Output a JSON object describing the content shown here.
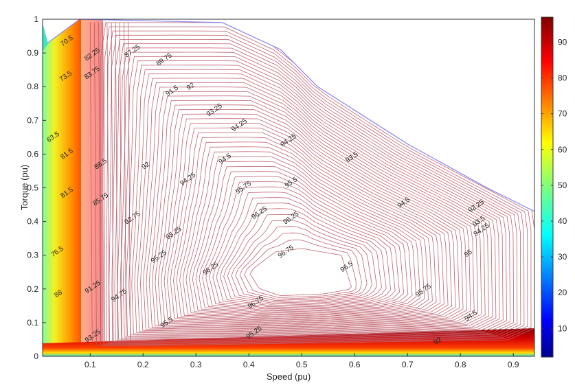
{
  "chart_data": {
    "type": "contour",
    "title": "",
    "xlabel": "Speed (pu)",
    "ylabel": "Torque (pu)",
    "xlim": [
      0.01,
      0.94
    ],
    "ylim": [
      0,
      1
    ],
    "x_ticks": [
      "0.1",
      "0.2",
      "0.3",
      "0.4",
      "0.5",
      "0.6",
      "0.7",
      "0.8",
      "0.9"
    ],
    "x_tick_values": [
      0.1,
      0.2,
      0.3,
      0.4,
      0.5,
      0.6,
      0.7,
      0.8,
      0.9
    ],
    "y_ticks": [
      "0",
      "0.1",
      "0.2",
      "0.3",
      "0.4",
      "0.5",
      "0.6",
      "0.7",
      "0.8",
      "0.9",
      "1"
    ],
    "y_tick_values": [
      0,
      0.1,
      0.2,
      0.3,
      0.4,
      0.5,
      0.6,
      0.7,
      0.8,
      0.9,
      1
    ],
    "colorbar": {
      "range": [
        2,
        97
      ],
      "ticks": [
        "10",
        "20",
        "30",
        "40",
        "50",
        "60",
        "70",
        "80",
        "90"
      ],
      "tick_values": [
        10,
        20,
        30,
        40,
        50,
        60,
        70,
        80,
        90
      ],
      "colormap": "jet"
    },
    "efficiency_peak": {
      "x": 0.52,
      "y": 0.26,
      "value": 96.75
    },
    "torque_limit_curve": [
      {
        "x": 0.02,
        "y": 0.93
      },
      {
        "x": 0.08,
        "y": 1.0
      },
      {
        "x": 0.35,
        "y": 0.99
      },
      {
        "x": 0.46,
        "y": 0.91
      },
      {
        "x": 0.53,
        "y": 0.8
      },
      {
        "x": 0.7,
        "y": 0.63
      },
      {
        "x": 0.85,
        "y": 0.5
      },
      {
        "x": 0.94,
        "y": 0.43
      }
    ],
    "contour_labels": [
      {
        "text": "70.5",
        "x": 0.056,
        "y": 0.935
      },
      {
        "text": "73.5",
        "x": 0.054,
        "y": 0.83
      },
      {
        "text": "63.5",
        "x": 0.03,
        "y": 0.65
      },
      {
        "text": "81.5",
        "x": 0.056,
        "y": 0.6
      },
      {
        "text": "81.5",
        "x": 0.056,
        "y": 0.485
      },
      {
        "text": "76.5",
        "x": 0.038,
        "y": 0.31
      },
      {
        "text": "88",
        "x": 0.04,
        "y": 0.185
      },
      {
        "text": "82.25",
        "x": 0.104,
        "y": 0.895
      },
      {
        "text": "83.75",
        "x": 0.104,
        "y": 0.84
      },
      {
        "text": "88.5",
        "x": 0.12,
        "y": 0.57
      },
      {
        "text": "85.75",
        "x": 0.12,
        "y": 0.465
      },
      {
        "text": "91.25",
        "x": 0.105,
        "y": 0.205
      },
      {
        "text": "93.25",
        "x": 0.105,
        "y": 0.06
      },
      {
        "text": "87.25",
        "x": 0.18,
        "y": 0.905
      },
      {
        "text": "89.75",
        "x": 0.24,
        "y": 0.88
      },
      {
        "text": "91.5",
        "x": 0.255,
        "y": 0.787
      },
      {
        "text": "92",
        "x": 0.29,
        "y": 0.8
      },
      {
        "text": "92",
        "x": 0.205,
        "y": 0.565
      },
      {
        "text": "92.75",
        "x": 0.18,
        "y": 0.41
      },
      {
        "text": "94.25",
        "x": 0.285,
        "y": 0.525
      },
      {
        "text": "95.25",
        "x": 0.258,
        "y": 0.365
      },
      {
        "text": "95.25",
        "x": 0.23,
        "y": 0.295
      },
      {
        "text": "94.75",
        "x": 0.155,
        "y": 0.18
      },
      {
        "text": "95.5",
        "x": 0.245,
        "y": 0.1
      },
      {
        "text": "93.25",
        "x": 0.335,
        "y": 0.73
      },
      {
        "text": "94.25",
        "x": 0.382,
        "y": 0.685
      },
      {
        "text": "94.5",
        "x": 0.355,
        "y": 0.585
      },
      {
        "text": "95.75",
        "x": 0.39,
        "y": 0.5
      },
      {
        "text": "95.5",
        "x": 0.48,
        "y": 0.515
      },
      {
        "text": "94.25",
        "x": 0.475,
        "y": 0.64
      },
      {
        "text": "96.25",
        "x": 0.42,
        "y": 0.425
      },
      {
        "text": "96.25",
        "x": 0.48,
        "y": 0.41
      },
      {
        "text": "96.25",
        "x": 0.328,
        "y": 0.26
      },
      {
        "text": "96.75",
        "x": 0.47,
        "y": 0.31
      },
      {
        "text": "96.75",
        "x": 0.413,
        "y": 0.16
      },
      {
        "text": "96.5",
        "x": 0.585,
        "y": 0.265
      },
      {
        "text": "95.25",
        "x": 0.41,
        "y": 0.07
      },
      {
        "text": "93.5",
        "x": 0.595,
        "y": 0.59
      },
      {
        "text": "94.5",
        "x": 0.693,
        "y": 0.455
      },
      {
        "text": "92.25",
        "x": 0.83,
        "y": 0.445
      },
      {
        "text": "93.5",
        "x": 0.835,
        "y": 0.4
      },
      {
        "text": "94.25",
        "x": 0.84,
        "y": 0.375
      },
      {
        "text": "95",
        "x": 0.815,
        "y": 0.305
      },
      {
        "text": "95.75",
        "x": 0.73,
        "y": 0.195
      },
      {
        "text": "94.5",
        "x": 0.82,
        "y": 0.12
      },
      {
        "text": "92",
        "x": 0.757,
        "y": 0.045
      }
    ]
  }
}
